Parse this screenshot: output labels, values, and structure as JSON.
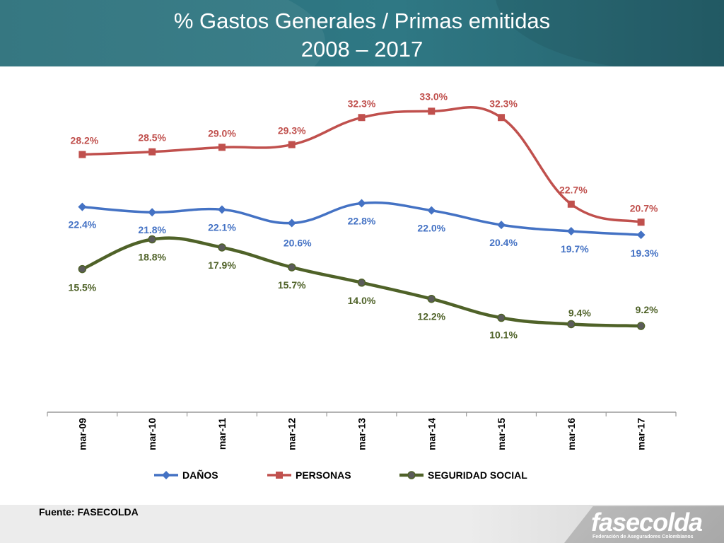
{
  "title_line1": "% Gastos Generales / Primas emitidas",
  "title_line2": "2008 – 2017",
  "source": "Fuente: FASECOLDA",
  "logo": {
    "wordmark": "fasecolda",
    "tagline": "Federación de Aseguradores Colombianos"
  },
  "chart_data": {
    "type": "line",
    "categories": [
      "mar-09",
      "mar-10",
      "mar-11",
      "mar-12",
      "mar-13",
      "mar-14",
      "mar-15",
      "mar-16",
      "mar-17"
    ],
    "series": [
      {
        "name": "DAÑOS",
        "color": "#4472c4",
        "marker": "diamond",
        "values": [
          22.4,
          21.8,
          22.1,
          20.6,
          22.8,
          22.0,
          20.4,
          19.7,
          19.3
        ],
        "labels": [
          "22.4%",
          "21.8%",
          "22.1%",
          "20.6%",
          "22.8%",
          "22.0%",
          "20.4%",
          "19.7%",
          "19.3%"
        ]
      },
      {
        "name": "PERSONAS",
        "color": "#c0504d",
        "marker": "square",
        "values": [
          28.2,
          28.5,
          29.0,
          29.3,
          32.3,
          33.0,
          32.3,
          22.7,
          20.7
        ],
        "labels": [
          "28.2%",
          "28.5%",
          "29.0%",
          "29.3%",
          "32.3%",
          "33.0%",
          "32.3%",
          "22.7%",
          "20.7%"
        ]
      },
      {
        "name": "SEGURIDAD SOCIAL",
        "color": "#4f6228",
        "marker": "circle",
        "values": [
          15.5,
          18.8,
          17.9,
          15.7,
          14.0,
          12.2,
          10.1,
          9.4,
          9.2
        ],
        "labels": [
          "15.5%",
          "18.8%",
          "17.9%",
          "15.7%",
          "14.0%",
          "12.2%",
          "10.1%",
          "9.4%",
          "9.2%"
        ]
      }
    ],
    "grid": false,
    "legend": "bottom"
  }
}
